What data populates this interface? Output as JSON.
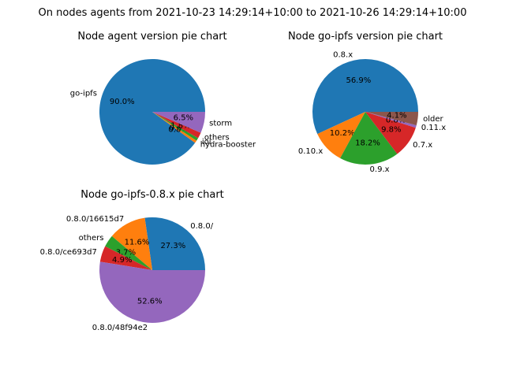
{
  "suptitle": "On nodes agents from 2021-10-23 14:29:14+10:00 to 2021-10-26 14:29:14+10:00",
  "colors": [
    "#1f77b4",
    "#ff7f0e",
    "#2ca02c",
    "#d62728",
    "#9467bd",
    "#8c564b"
  ],
  "chart_data": [
    {
      "type": "pie",
      "title": "Node agent version pie chart",
      "labels": [
        "go-ipfs",
        "hydra-booster",
        "ioi",
        "others",
        "storm"
      ],
      "values": [
        90.0,
        0.8,
        0.9,
        1.8,
        6.5
      ],
      "pct_labels": [
        "90.0%",
        "0.8%",
        "0.9%",
        "1.8%",
        "6.5%"
      ]
    },
    {
      "type": "pie",
      "title": "Node go-ipfs version pie chart",
      "labels": [
        "0.8.x",
        "0.10.x",
        "0.9.x",
        "0.7.x",
        "0.11.x",
        "older"
      ],
      "values": [
        56.9,
        10.2,
        18.2,
        9.8,
        0.8,
        4.1
      ],
      "pct_labels": [
        "56.9%",
        "10.2%",
        "18.2%",
        "9.8%",
        "0.8%",
        "4.1%"
      ]
    },
    {
      "type": "pie",
      "title": "Node go-ipfs-0.8.x pie chart",
      "labels": [
        "0.8.0/",
        "0.8.0/16615d7",
        "others",
        "0.8.0/ce693d7",
        "0.8.0/48f94e2"
      ],
      "values": [
        27.3,
        11.6,
        3.7,
        4.9,
        52.6
      ],
      "pct_labels": [
        "27.3%",
        "11.6%",
        "3.7%",
        "4.9%",
        "52.6%"
      ]
    }
  ]
}
